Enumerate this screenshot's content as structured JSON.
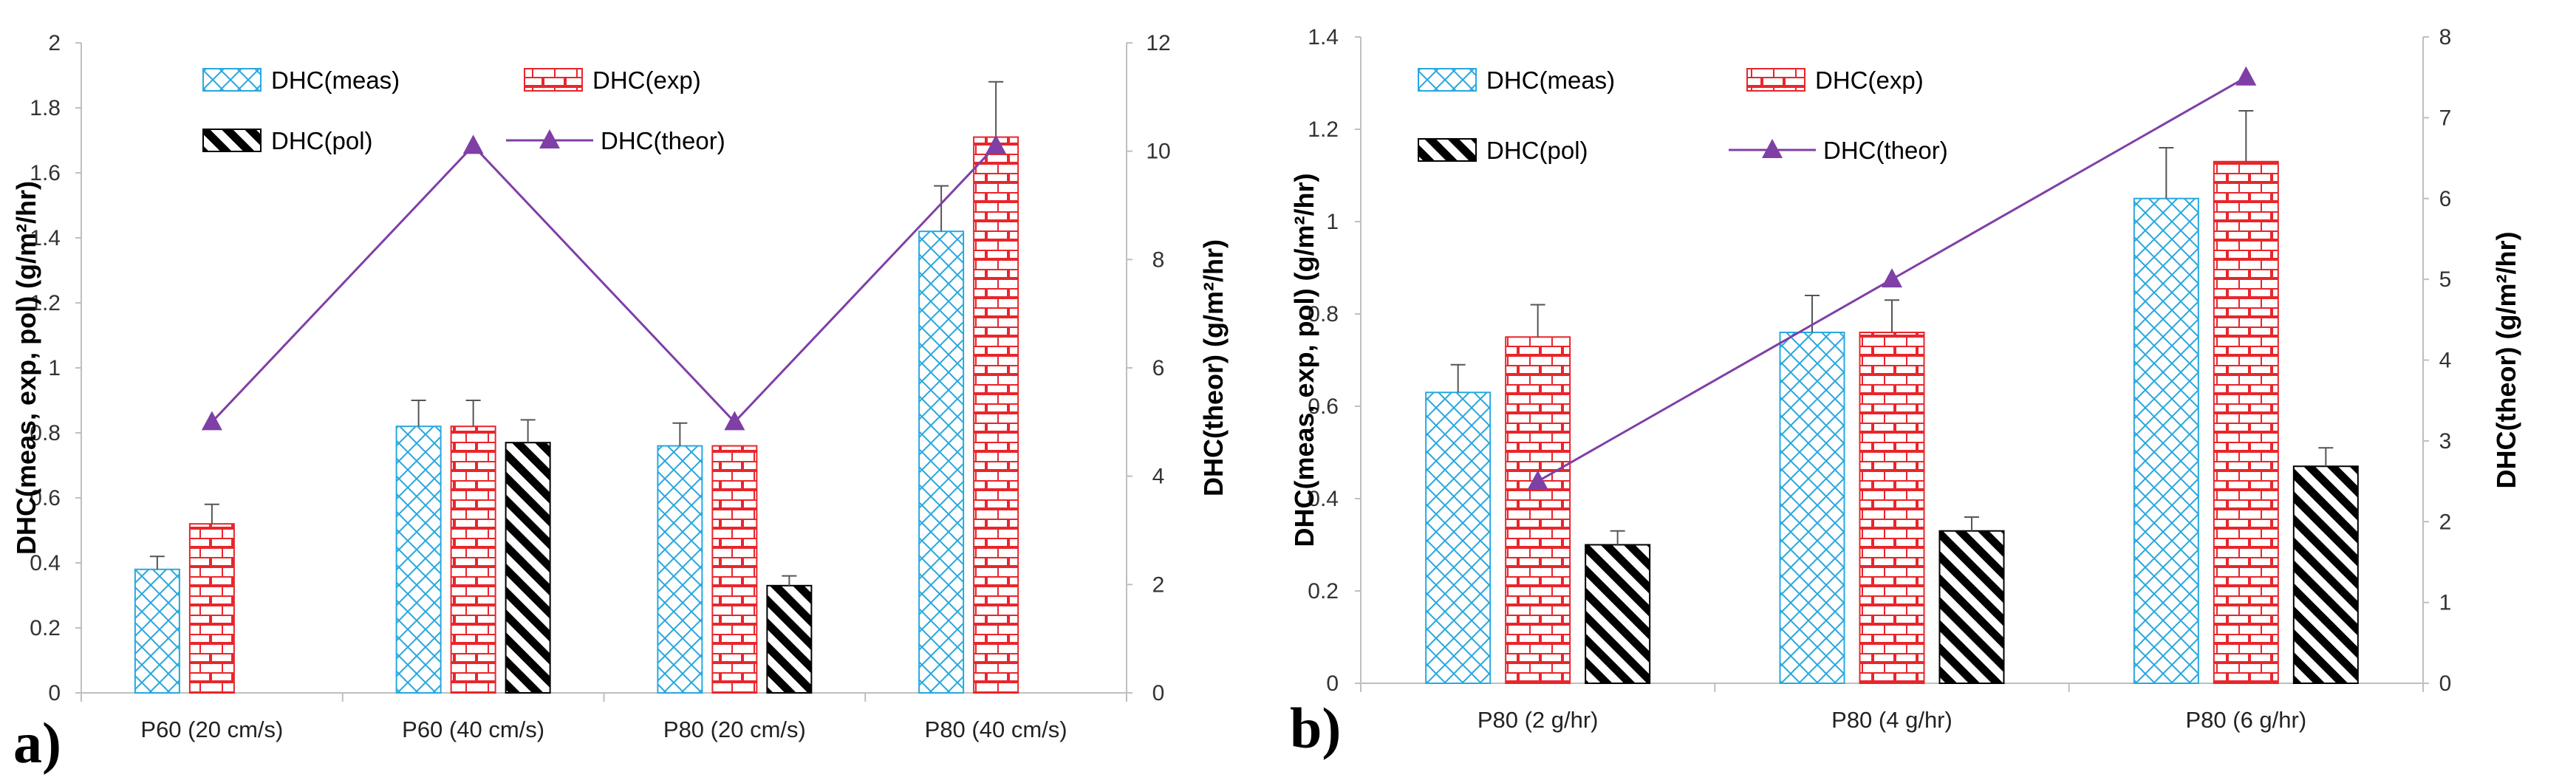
{
  "colors": {
    "meas": "#29a8df",
    "exp": "#e8262b",
    "pol": "#000000",
    "theor": "#7f3fa6",
    "axis": "#bfbfbf"
  },
  "chart_data": [
    {
      "type": "bar",
      "panel_label": "a)",
      "categories": [
        "P60 (20 cm/s)",
        "P60 (40 cm/s)",
        "P80 (20 cm/s)",
        "P80 (40 cm/s)"
      ],
      "ylabel": "DHC(meas, exp, pol) (g/m²/hr)",
      "y2label": "DHC(theor) (g/m²/hr)",
      "ylim": [
        0,
        2
      ],
      "yticks": [
        "0",
        "0.2",
        "0.4",
        "0.6",
        "0.8",
        "1",
        "1.2",
        "1.4",
        "1.6",
        "1.8",
        "2"
      ],
      "y2lim": [
        0,
        12
      ],
      "y2ticks": [
        "0",
        "2",
        "4",
        "6",
        "8",
        "10",
        "12"
      ],
      "series": [
        {
          "name": "DHC(meas)",
          "key": "meas",
          "values": [
            0.38,
            0.82,
            0.76,
            1.42
          ],
          "errors": [
            0.04,
            0.08,
            0.07,
            0.14
          ]
        },
        {
          "name": "DHC(exp)",
          "key": "exp",
          "values": [
            0.52,
            0.82,
            0.76,
            1.71
          ],
          "errors": [
            0.06,
            0.08,
            0.0,
            0.17
          ]
        },
        {
          "name": "DHC(pol)",
          "key": "pol",
          "values": [
            null,
            0.77,
            0.33,
            null
          ],
          "errors": [
            null,
            0.07,
            0.03,
            null
          ]
        }
      ],
      "line_series": {
        "name": "DHC(theor)",
        "key": "theor",
        "axis": "secondary",
        "values": [
          5,
          10.1,
          5,
          10.1
        ]
      }
    },
    {
      "type": "bar",
      "panel_label": "b)",
      "categories": [
        "P80 (2 g/hr)",
        "P80 (4 g/hr)",
        "P80 (6 g/hr)"
      ],
      "ylabel": "DHC(meas, exp, pol) (g/m²/hr)",
      "y2label": "DHC(theor) (g/m²/hr)",
      "ylim": [
        0,
        1.4
      ],
      "yticks": [
        "0",
        "0.2",
        "0.4",
        "0.6",
        "0.8",
        "1",
        "1.2",
        "1.4"
      ],
      "y2lim": [
        0,
        8
      ],
      "y2ticks": [
        "0",
        "1",
        "2",
        "3",
        "4",
        "5",
        "6",
        "7",
        "8"
      ],
      "series": [
        {
          "name": "DHC(meas)",
          "key": "meas",
          "values": [
            0.63,
            0.76,
            1.05
          ],
          "errors": [
            0.06,
            0.08,
            0.11
          ]
        },
        {
          "name": "DHC(exp)",
          "key": "exp",
          "values": [
            0.75,
            0.76,
            1.13
          ],
          "errors": [
            0.07,
            0.07,
            0.11
          ]
        },
        {
          "name": "DHC(pol)",
          "key": "pol",
          "values": [
            0.3,
            0.33,
            0.47
          ],
          "errors": [
            0.03,
            0.03,
            0.04
          ]
        }
      ],
      "line_series": {
        "name": "DHC(theor)",
        "key": "theor",
        "axis": "secondary",
        "values": [
          2.5,
          5,
          7.5
        ]
      }
    }
  ]
}
